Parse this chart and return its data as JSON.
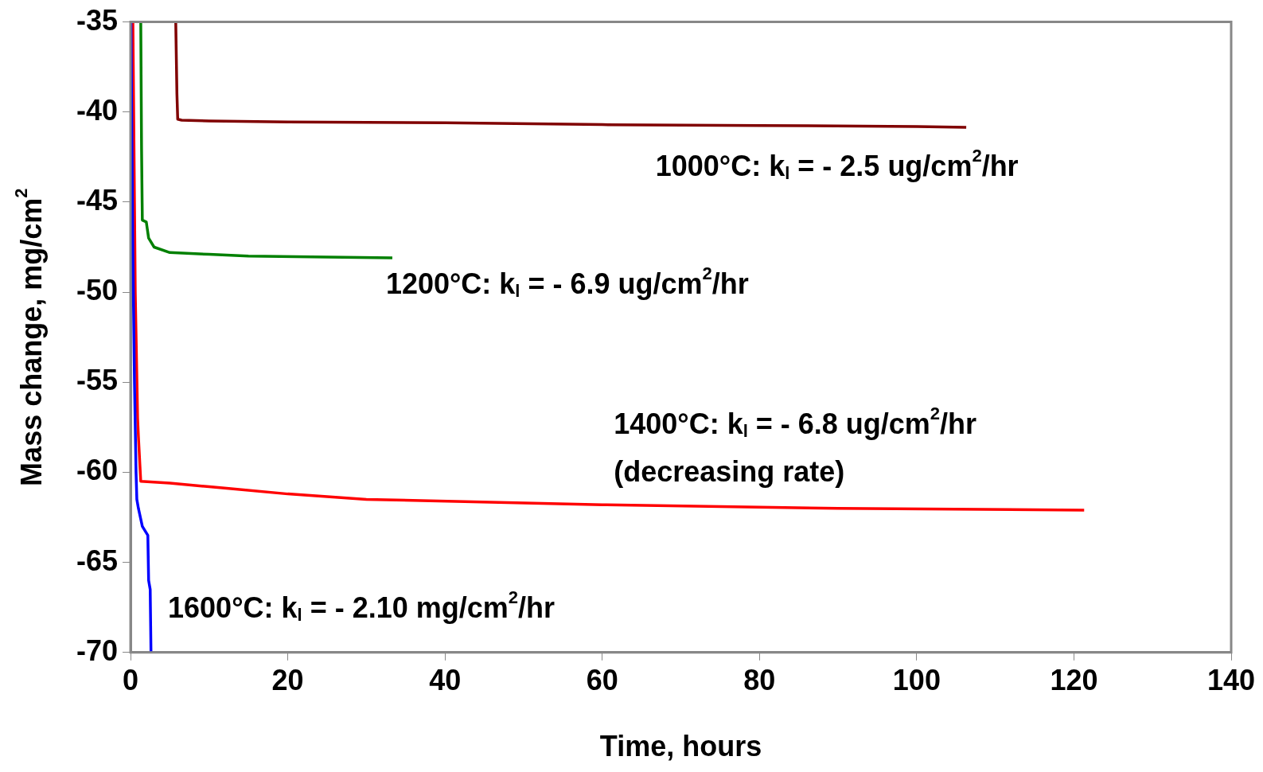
{
  "chart_data": {
    "type": "line",
    "xlabel": "Time, hours",
    "ylabel": "Mass change, mg/cm$^{2}$",
    "xlim": [
      0,
      140
    ],
    "xticks": [
      0,
      20,
      40,
      60,
      80,
      100,
      120,
      140
    ],
    "ylim": [
      -70,
      -35
    ],
    "yticks": [
      -70,
      -65,
      -60,
      -55,
      -50,
      -45,
      -40,
      -35
    ],
    "grid": false,
    "legend": false,
    "marker": "none",
    "line_style": "solid",
    "series": [
      {
        "color": "#800000",
        "x": [
          5.75,
          5.9,
          6.0,
          6.5,
          10,
          20,
          40,
          60,
          80,
          100,
          106.3
        ],
        "values": [
          -35,
          -39,
          -40.4,
          -40.45,
          -40.5,
          -40.55,
          -40.6,
          -40.7,
          -40.75,
          -40.8,
          -40.85
        ]
      },
      {
        "color": "#008000",
        "x": [
          1.3,
          1.4,
          1.5,
          2.0,
          2.3,
          3.0,
          5,
          10,
          15,
          25,
          33.3
        ],
        "values": [
          -35,
          -42,
          -46,
          -46.1,
          -47,
          -47.5,
          -47.8,
          -47.9,
          -48.0,
          -48.05,
          -48.1
        ]
      },
      {
        "color": "#ff0000",
        "x": [
          0.3,
          0.6,
          0.9,
          1.0,
          1.3,
          5,
          10,
          12.5,
          20,
          30,
          60,
          90,
          121.3
        ],
        "values": [
          -35,
          -50,
          -57,
          -58,
          -60.5,
          -60.6,
          -60.8,
          -60.9,
          -61.2,
          -61.5,
          -61.8,
          -62.0,
          -62.1
        ]
      },
      {
        "color": "#0000ff",
        "x": [
          0.05,
          0.3,
          0.5,
          0.7,
          0.8,
          1.0,
          1.5,
          2.2,
          2.3,
          2.5,
          2.6
        ],
        "values": [
          -35,
          -48,
          -55,
          -60,
          -61.5,
          -62,
          -63,
          -63.5,
          -66,
          -66.5,
          -70
        ]
      }
    ],
    "annotations": [
      "1000°C: k$_{l}$ = - 2.5 ug/cm$^{2}$/hr",
      "1200°C: k$_{l}$ = - 6.9 ug/cm$^{2}$/hr",
      "1400°C: k$_{l}$ = - 6.8 ug/cm$^{2}$/hr",
      "(decreasing rate)",
      "1600°C: k$_{l}$ = - 2.10 mg/cm$^{2}$/hr"
    ]
  }
}
